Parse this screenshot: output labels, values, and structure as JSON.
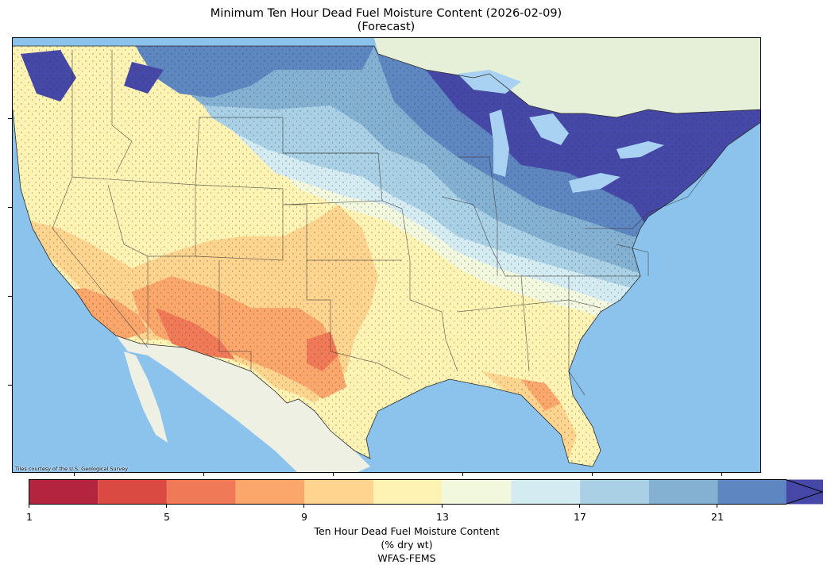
{
  "header": {
    "title_line1": "Minimum Ten Hour Dead Fuel Moisture Content (2026-02-09)",
    "title_line2": "(Forecast)"
  },
  "map": {
    "region": "Contiguous United States",
    "tile_credit": "Tiles courtesy of the U.S. Geological Survey",
    "colors": {
      "ocean": "#8cc3ec",
      "land_basemap": "#eef0e4",
      "canada_basemap": "#e6efd8",
      "lakes": "#a9d2f2",
      "state_borders": "#3a3a3a"
    }
  },
  "colorbar": {
    "tick_labels": [
      "1",
      "5",
      "9",
      "13",
      "17",
      "21"
    ],
    "colors": [
      "#b5243f",
      "#da4a42",
      "#f07a57",
      "#fba66a",
      "#fed48e",
      "#fef3b2",
      "#f1f8de",
      "#d4ebf2",
      "#a9d0e4",
      "#84b0d2",
      "#5e86c0",
      "#4548a6"
    ],
    "extend": "max",
    "label_line1": "Ten Hour Dead Fuel Moisture Content",
    "label_line2": "(% dry wt)",
    "label_line3": "WFAS-FEMS"
  }
}
